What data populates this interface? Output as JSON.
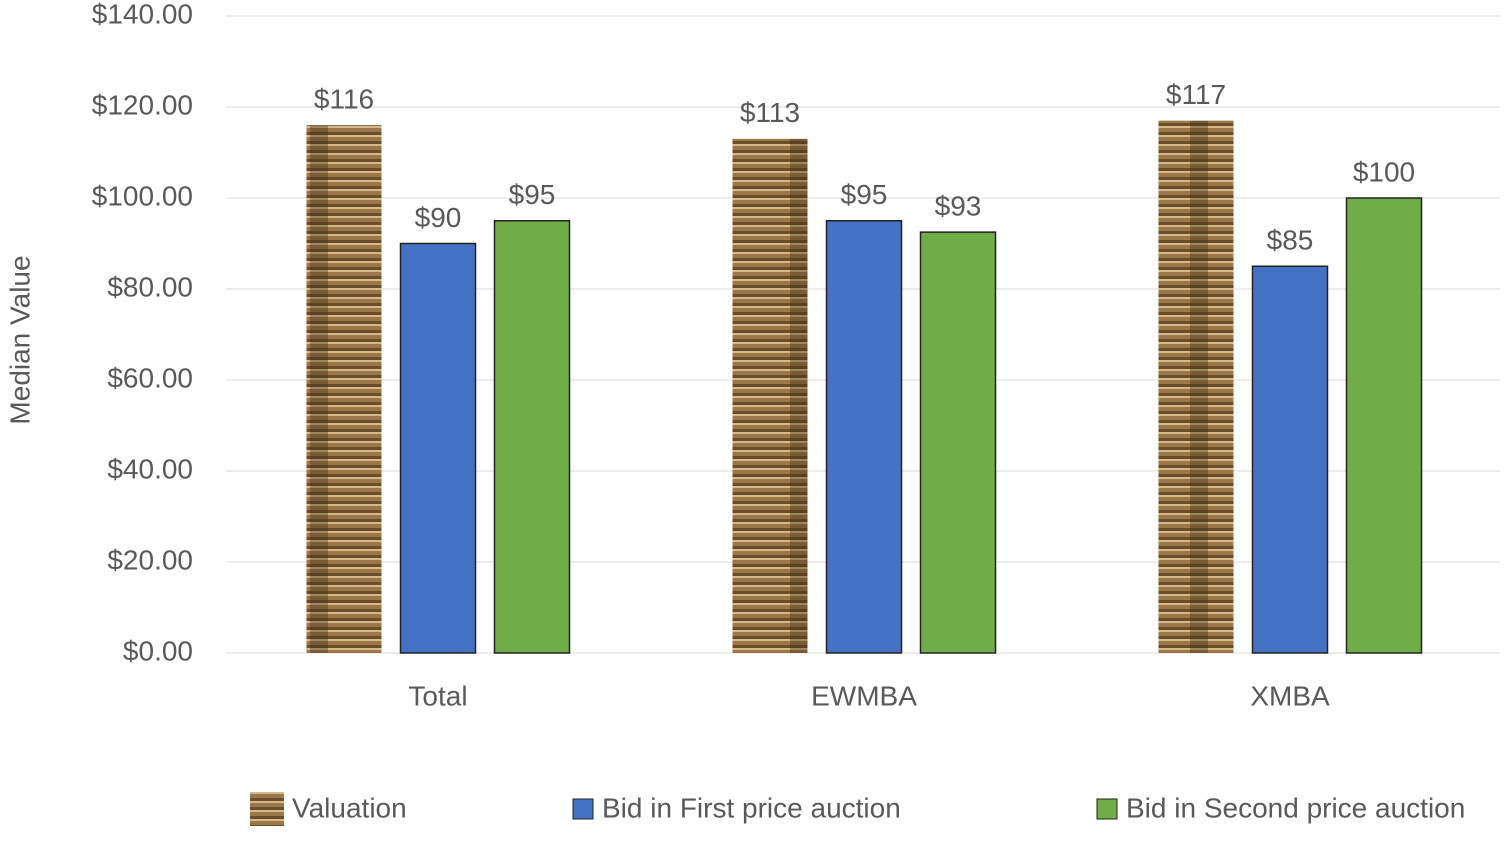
{
  "chart_data": {
    "type": "bar",
    "y_label": "Median Value",
    "categories": [
      "Total",
      "EWMBA",
      "XMBA"
    ],
    "series": [
      {
        "name": "Valuation",
        "color": "#9c7748",
        "values": [
          116,
          113,
          117
        ],
        "value_labels": [
          "$116",
          "$113",
          "$117"
        ]
      },
      {
        "name": "Bid in First price auction",
        "color": "#4472c4",
        "values": [
          90,
          95,
          85
        ],
        "value_labels": [
          "$90",
          "$95",
          "$85"
        ]
      },
      {
        "name": "Bid in Second price auction",
        "color": "#70ad47",
        "values": [
          95,
          92.5,
          100
        ],
        "value_labels": [
          "$95",
          "$93",
          "$100"
        ]
      }
    ],
    "ylim": [
      0,
      140
    ],
    "yticks": [
      {
        "value": 0,
        "label": "$0.00"
      },
      {
        "value": 20,
        "label": "$20.00"
      },
      {
        "value": 40,
        "label": "$40.00"
      },
      {
        "value": 60,
        "label": "$60.00"
      },
      {
        "value": 80,
        "label": "$80.00"
      },
      {
        "value": 100,
        "label": "$100.00"
      },
      {
        "value": 120,
        "label": "$120.00"
      },
      {
        "value": 140,
        "label": "$140.00"
      }
    ],
    "grid": true
  }
}
